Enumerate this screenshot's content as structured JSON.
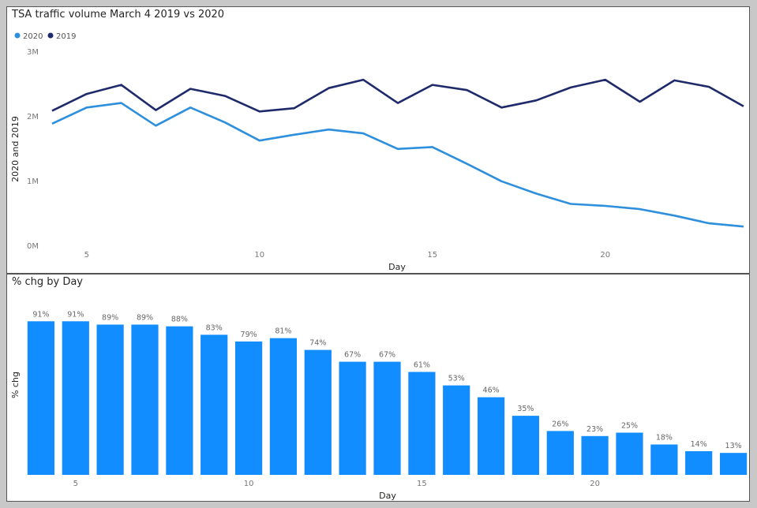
{
  "chart_data": [
    {
      "type": "line",
      "title": "TSA traffic volume March 4 2019 vs 2020",
      "xlabel": "Day",
      "ylabel": "2020 and 2019",
      "x": [
        4,
        5,
        6,
        7,
        8,
        9,
        10,
        11,
        12,
        13,
        14,
        15,
        16,
        17,
        18,
        19,
        20,
        21,
        22,
        23,
        24
      ],
      "xticks": [
        5,
        10,
        15,
        20
      ],
      "ylim": [
        0,
        3000000
      ],
      "yticks": [
        0,
        1000000,
        2000000,
        3000000
      ],
      "ytick_labels": [
        "0M",
        "1M",
        "2M",
        "3M"
      ],
      "legend_position": "top-left",
      "series": [
        {
          "name": "2020",
          "color": "#2e8fdc",
          "values": [
            1880000,
            2130000,
            2200000,
            1850000,
            2130000,
            1900000,
            1620000,
            1710000,
            1790000,
            1730000,
            1490000,
            1520000,
            1260000,
            990000,
            800000,
            640000,
            610000,
            560000,
            460000,
            340000,
            290000
          ]
        },
        {
          "name": "2019",
          "color": "#1f2a6b",
          "values": [
            2080000,
            2340000,
            2480000,
            2090000,
            2420000,
            2310000,
            2070000,
            2120000,
            2430000,
            2560000,
            2200000,
            2480000,
            2400000,
            2130000,
            2240000,
            2440000,
            2560000,
            2220000,
            2550000,
            2450000,
            2150000
          ]
        }
      ],
      "grid": false
    },
    {
      "type": "bar",
      "title": "% chg by Day",
      "xlabel": "Day",
      "ylabel": "% chg",
      "categories": [
        4,
        5,
        6,
        7,
        8,
        9,
        10,
        11,
        12,
        13,
        14,
        15,
        16,
        17,
        18,
        19,
        20,
        21,
        22,
        23,
        24
      ],
      "xticks": [
        5,
        10,
        15,
        20
      ],
      "values": [
        91,
        91,
        89,
        89,
        88,
        83,
        79,
        81,
        74,
        67,
        67,
        61,
        53,
        46,
        35,
        26,
        23,
        25,
        18,
        14,
        13
      ],
      "value_labels": [
        "91%",
        "91%",
        "89%",
        "89%",
        "88%",
        "83%",
        "79%",
        "81%",
        "74%",
        "67%",
        "67%",
        "61%",
        "53%",
        "46%",
        "35%",
        "26%",
        "23%",
        "25%",
        "18%",
        "14%",
        "13%"
      ],
      "ylim": [
        0,
        100
      ],
      "bar_color": "#118dff",
      "grid": false
    }
  ]
}
